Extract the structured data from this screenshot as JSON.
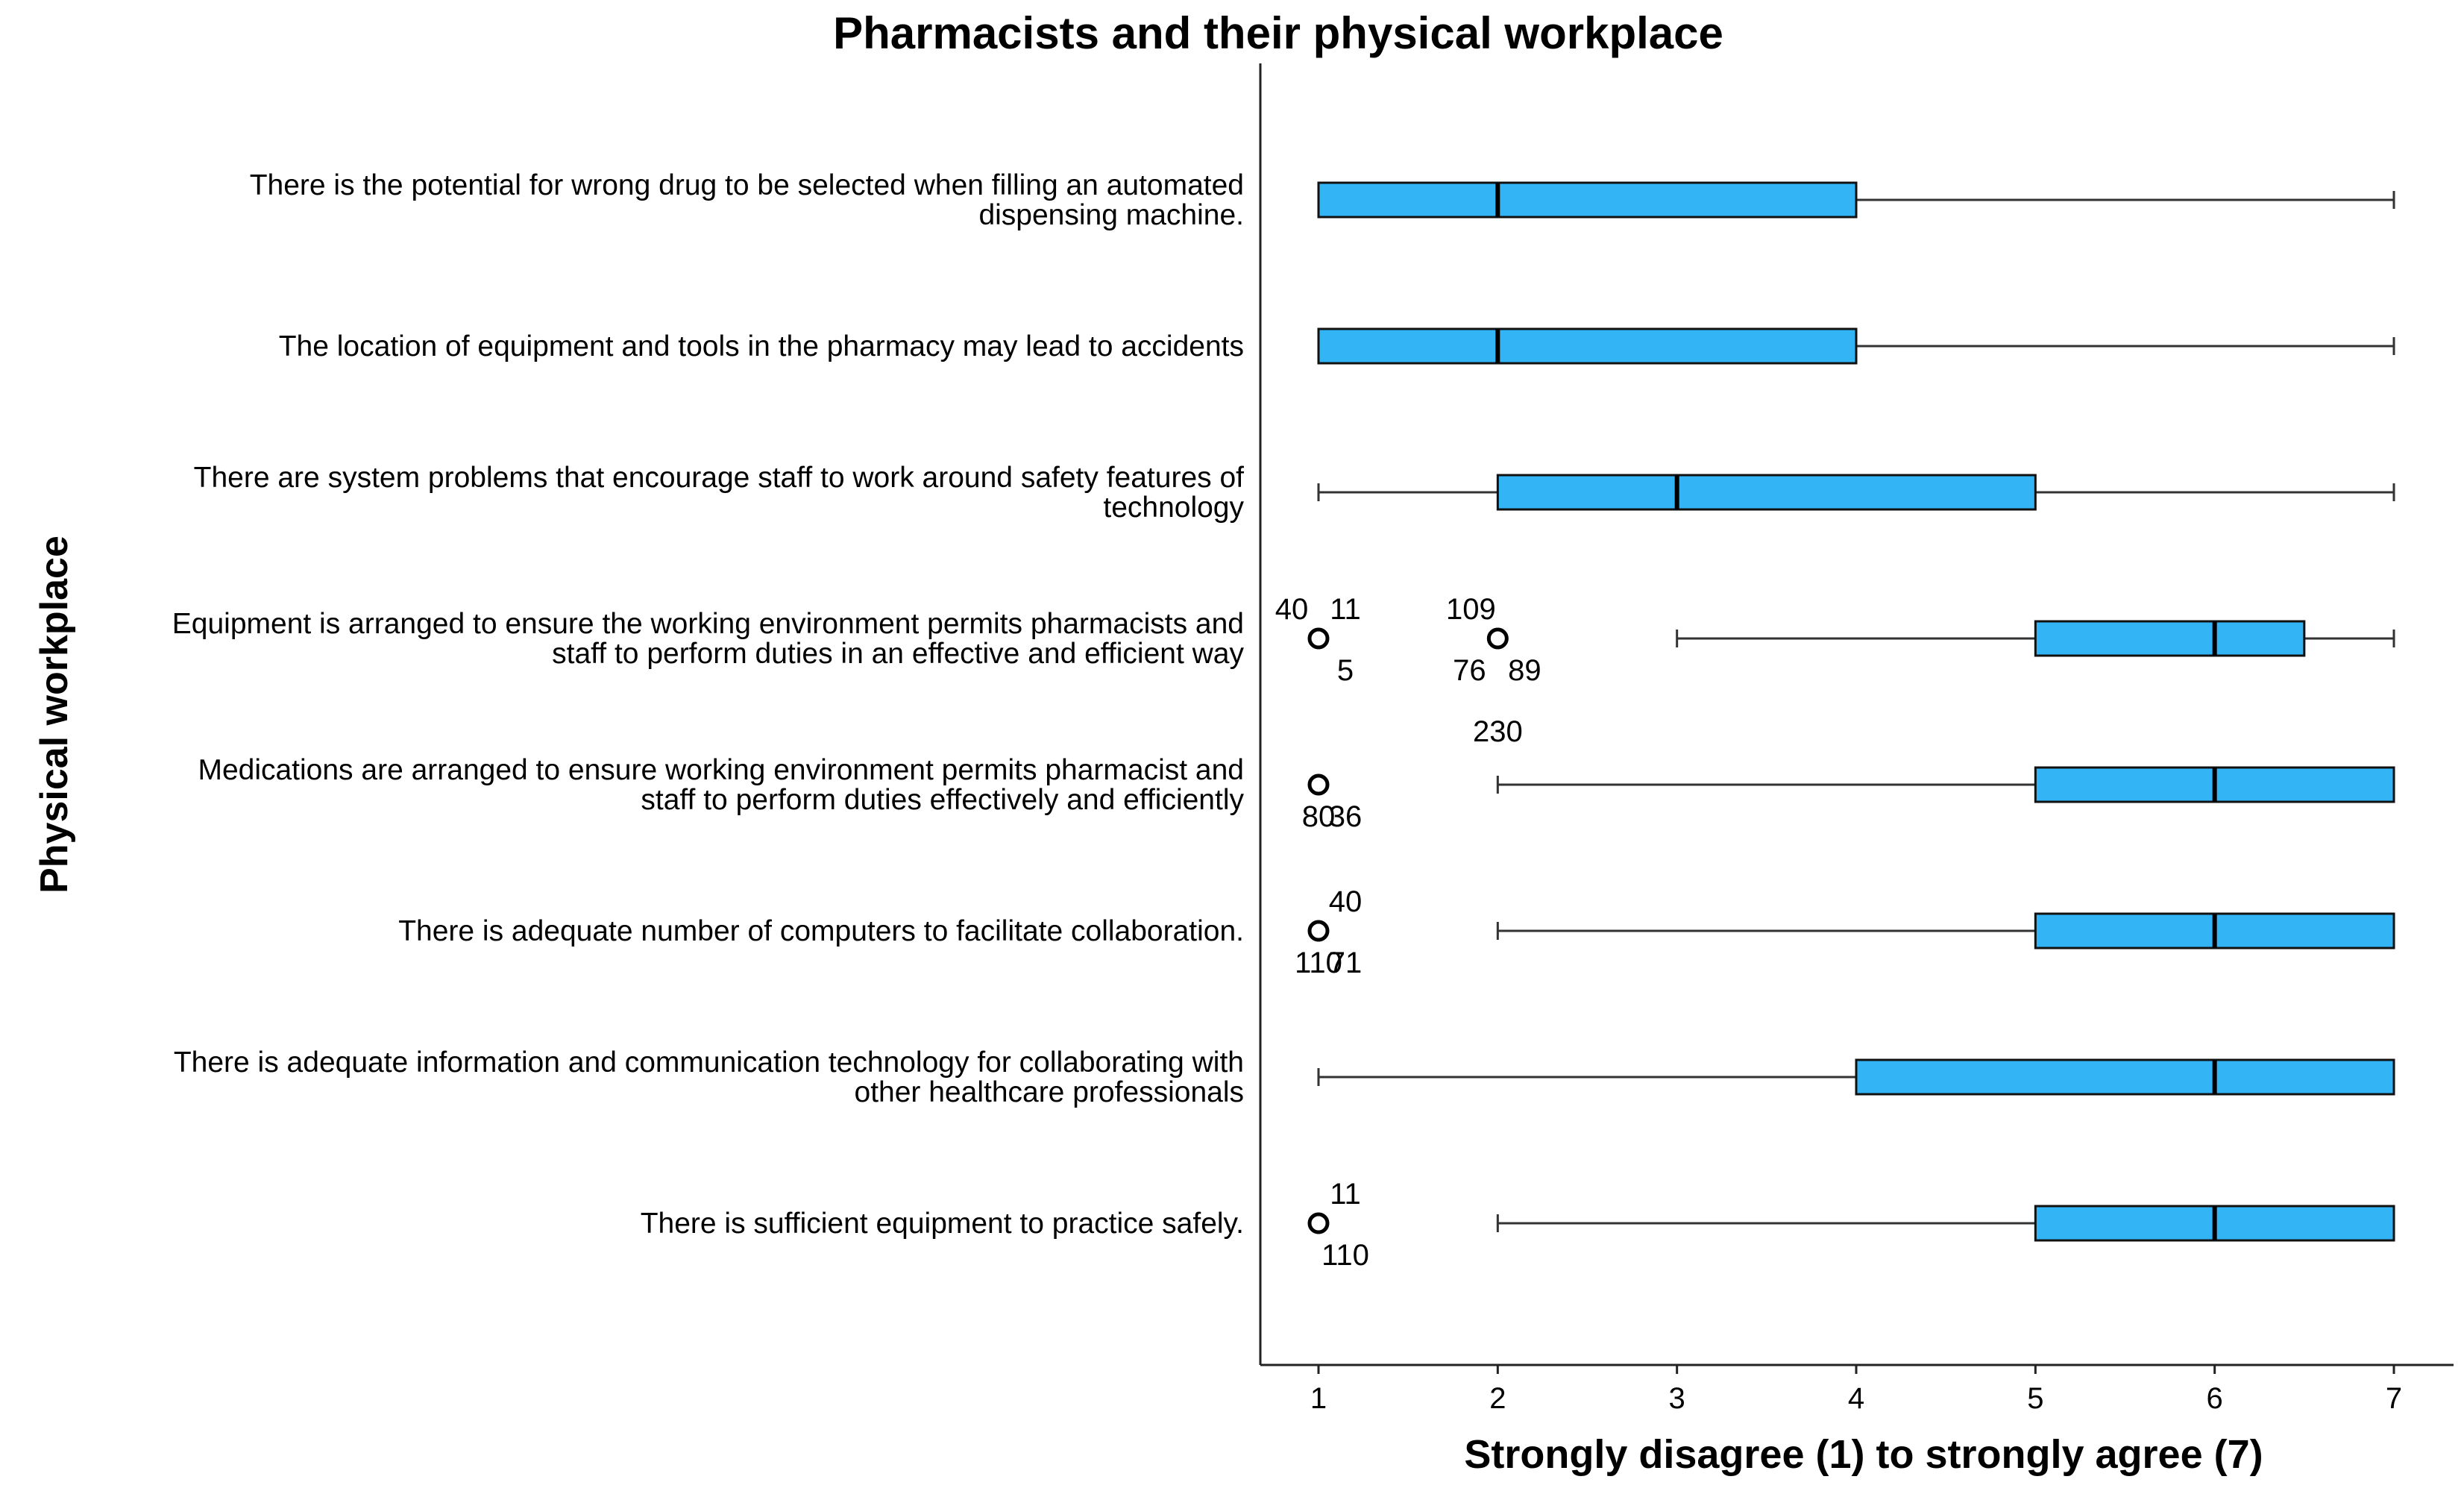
{
  "chart_data": {
    "type": "boxplot",
    "title": "Pharmacists and their physical workplace",
    "xlabel": "Strongly disagree (1) to strongly agree (7)",
    "ylabel": "Physical workplace",
    "xlim": [
      0.7,
      7.3
    ],
    "xticks": [
      1,
      2,
      3,
      4,
      5,
      6,
      7
    ],
    "box_color": "#33B5F5",
    "items": [
      {
        "label": [
          "There is the potential for wrong drug to be selected when filling an automated",
          "dispensing machine."
        ],
        "whisker_low": 1,
        "q1": 1,
        "median": 2,
        "q3": 4,
        "whisker_high": 7,
        "outliers": []
      },
      {
        "label": [
          "The location of equipment and tools in the pharmacy may lead to accidents"
        ],
        "whisker_low": 1,
        "q1": 1,
        "median": 2,
        "q3": 4,
        "whisker_high": 7,
        "outliers": []
      },
      {
        "label": [
          "There are system problems that encourage staff to work around safety features of",
          "technology"
        ],
        "whisker_low": 1,
        "q1": 2,
        "median": 3,
        "q3": 5,
        "whisker_high": 7,
        "outliers": []
      },
      {
        "label": [
          "Equipment is arranged to ensure the working environment permits pharmacists and",
          "staff to perform duties in an effective and efficient way"
        ],
        "whisker_low": 3,
        "q1": 5,
        "median": 6,
        "q3": 6.5,
        "whisker_high": 7,
        "outliers": [
          {
            "value": 1,
            "ids": [
              {
                "text": "40",
                "pos": "upper-left"
              },
              {
                "text": "11",
                "pos": "upper-right"
              },
              {
                "text": "5",
                "pos": "lower-right"
              }
            ]
          },
          {
            "value": 2,
            "ids": [
              {
                "text": "109",
                "pos": "upper-left"
              },
              {
                "text": "76",
                "pos": "lower-left"
              },
              {
                "text": "89",
                "pos": "lower-right"
              }
            ]
          }
        ]
      },
      {
        "label": [
          "Medications are arranged to ensure working environment permits pharmacist and",
          "staff to perform duties effectively and efficiently"
        ],
        "whisker_low": 2,
        "q1": 5,
        "median": 6,
        "q3": 7,
        "whisker_high": 7,
        "outliers": [
          {
            "value": 1,
            "ids": [
              {
                "text": "80",
                "pos": "lower-center"
              },
              {
                "text": "36",
                "pos": "lower-right"
              }
            ]
          }
        ],
        "extra_labels": [
          {
            "text": "230",
            "x": 2,
            "pos": "above-far"
          }
        ]
      },
      {
        "label": [
          "There is adequate number of computers to facilitate collaboration."
        ],
        "whisker_low": 2,
        "q1": 5,
        "median": 6,
        "q3": 7,
        "whisker_high": 7,
        "outliers": [
          {
            "value": 1,
            "ids": [
              {
                "text": "40",
                "pos": "upper-right"
              },
              {
                "text": "110",
                "pos": "lower-center"
              },
              {
                "text": "71",
                "pos": "lower-right"
              }
            ]
          }
        ]
      },
      {
        "label": [
          "There is adequate information and communication technology for collaborating with",
          "other healthcare professionals"
        ],
        "whisker_low": 1,
        "q1": 4,
        "median": 6,
        "q3": 7,
        "whisker_high": 7,
        "outliers": []
      },
      {
        "label": [
          "There is sufficient equipment to practice safely."
        ],
        "whisker_low": 2,
        "q1": 5,
        "median": 6,
        "q3": 7,
        "whisker_high": 7,
        "outliers": [
          {
            "value": 1,
            "ids": [
              {
                "text": "11",
                "pos": "upper-right"
              },
              {
                "text": "110",
                "pos": "lower-right"
              }
            ]
          }
        ]
      }
    ]
  }
}
